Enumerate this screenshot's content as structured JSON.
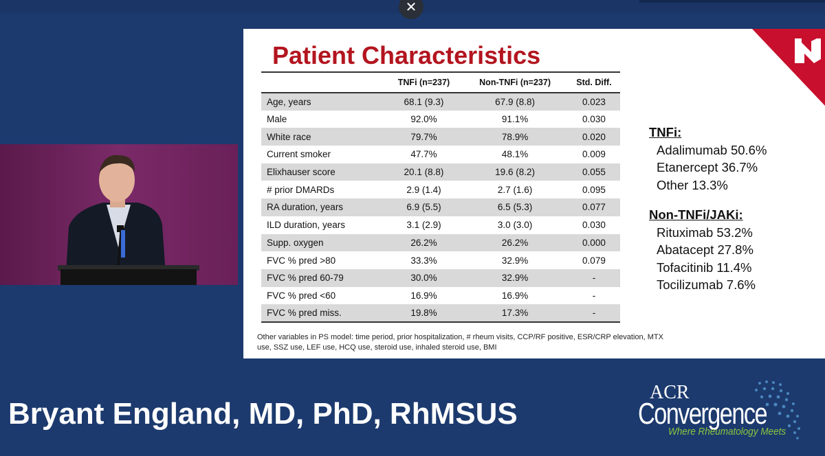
{
  "close_label": "✕",
  "slide": {
    "title": "Patient Characteristics",
    "table": {
      "headers": [
        "",
        "TNFi (n=237)",
        "Non-TNFi (n=237)",
        "Std. Diff."
      ],
      "rows": [
        [
          "Age, years",
          "68.1 (9.3)",
          "67.9 (8.8)",
          "0.023"
        ],
        [
          "Male",
          "92.0%",
          "91.1%",
          "0.030"
        ],
        [
          "White race",
          "79.7%",
          "78.9%",
          "0.020"
        ],
        [
          "Current smoker",
          "47.7%",
          "48.1%",
          "0.009"
        ],
        [
          "Elixhauser score",
          "20.1 (8.8)",
          "19.6 (8.2)",
          "0.055"
        ],
        [
          "# prior DMARDs",
          "2.9 (1.4)",
          "2.7 (1.6)",
          "0.095"
        ],
        [
          "RA duration, years",
          "6.9 (5.5)",
          "6.5 (5.3)",
          "0.077"
        ],
        [
          "ILD duration, years",
          "3.1 (2.9)",
          "3.0 (3.0)",
          "0.030"
        ],
        [
          "Supp. oxygen",
          "26.2%",
          "26.2%",
          "0.000"
        ],
        [
          "FVC % pred >80",
          "33.3%",
          "32.9%",
          "0.079"
        ],
        [
          "FVC % pred 60-79",
          "30.0%",
          "32.9%",
          "-"
        ],
        [
          "FVC % pred <60",
          "16.9%",
          "16.9%",
          "-"
        ],
        [
          "FVC % pred miss.",
          "19.8%",
          "17.3%",
          "-"
        ]
      ]
    },
    "footnote": "Other variables in PS model: time period, prior hospitalization, # rheum visits, CCP/RF positive, ESR/CRP elevation, MTX use, SSZ use, LEF use, HCQ use, steroid use, inhaled steroid use, BMI",
    "tnfi": {
      "header": "TNFi:",
      "items": [
        "Adalimumab 50.6%",
        "Etanercept 36.7%",
        "Other 13.3%"
      ]
    },
    "non_tnfi": {
      "header": "Non-TNFi/JAKi:",
      "items": [
        "Rituximab 53.2%",
        "Abatacept 27.8%",
        "Tofacitinib 11.4%",
        "Tocilizumab 7.6%"
      ]
    },
    "accent_color": "#b3151f"
  },
  "speaker_name": "Bryant England, MD, PhD, RhMSUS",
  "logo": {
    "acr": "ACR",
    "convergence": "Convergence",
    "tagline": "Where Rheumatology Meets"
  }
}
